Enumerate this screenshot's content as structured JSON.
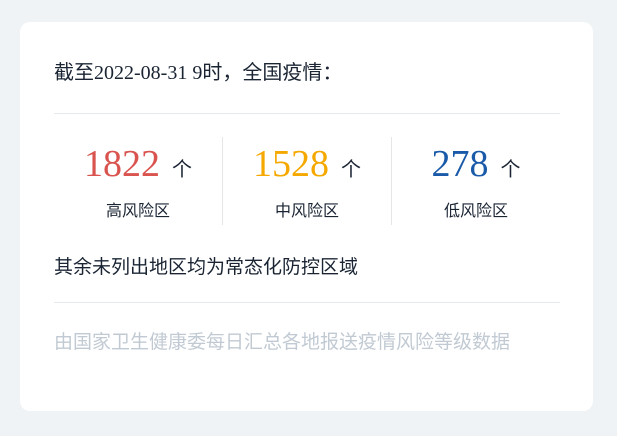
{
  "title": "截至2022-08-31 9时，全国疫情：",
  "stats": [
    {
      "value": "1822",
      "unit": "个",
      "label": "高风险区",
      "color": "#d9534f"
    },
    {
      "value": "1528",
      "unit": "个",
      "label": "中风险区",
      "color": "#f5a900"
    },
    {
      "value": "278",
      "unit": "个",
      "label": "低风险区",
      "color": "#1a5aa8"
    }
  ],
  "rest": "其余未列出地区均为常态化防控区域",
  "note": "由国家卫生健康委每日汇总各地报送疫情风险等级数据"
}
